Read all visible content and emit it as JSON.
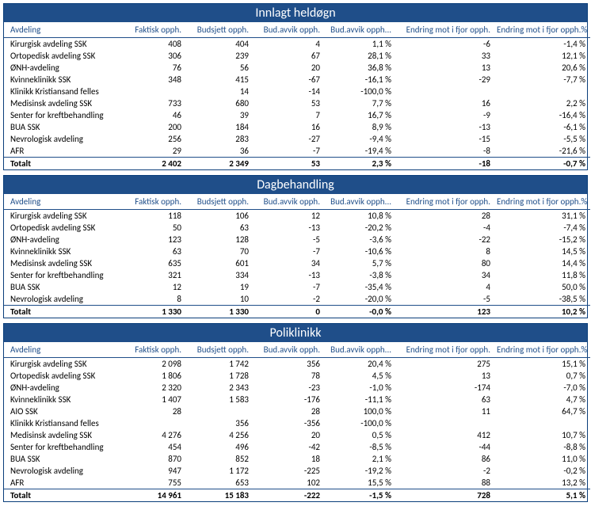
{
  "columns": [
    "Avdeling",
    "Faktisk opph.",
    "Budsjett opph.",
    "Bud.avvik opph.",
    "Bud.avvik opph...",
    "Endring mot i fjor opph.",
    "Endring mot i fjor opph.%"
  ],
  "sections": [
    {
      "title": "Innlagt heldøgn",
      "rows": [
        [
          "Kirurgisk avdeling SSK",
          "408",
          "404",
          "4",
          "1,1 %",
          "-6",
          "-1,4 %"
        ],
        [
          "Ortopedisk avdeling SSK",
          "306",
          "239",
          "67",
          "28,1 %",
          "33",
          "12,1 %"
        ],
        [
          "ØNH-avdeling",
          "76",
          "56",
          "20",
          "36,8 %",
          "13",
          "20,6 %"
        ],
        [
          "Kvinneklinikk SSK",
          "348",
          "415",
          "-67",
          "-16,1 %",
          "-29",
          "-7,7 %"
        ],
        [
          "Klinikk Kristiansand felles",
          "",
          "14",
          "-14",
          "-100,0 %",
          "",
          ""
        ],
        [
          "Medisinsk avdeling SSK",
          "733",
          "680",
          "53",
          "7,7 %",
          "16",
          "2,2 %"
        ],
        [
          "Senter for kreftbehandling",
          "46",
          "39",
          "7",
          "16,7 %",
          "-9",
          "-16,4 %"
        ],
        [
          "BUA SSK",
          "200",
          "184",
          "16",
          "8,9 %",
          "-13",
          "-6,1 %"
        ],
        [
          "Nevrologisk avdeling",
          "256",
          "283",
          "-27",
          "-9,4 %",
          "-15",
          "-5,5 %"
        ],
        [
          "AFR",
          "29",
          "36",
          "-7",
          "-19,4 %",
          "-8",
          "-21,6 %"
        ]
      ],
      "total": [
        "Totalt",
        "2 402",
        "2 349",
        "53",
        "2,3 %",
        "-18",
        "-0,7 %"
      ]
    },
    {
      "title": "Dagbehandling",
      "rows": [
        [
          "Kirurgisk avdeling SSK",
          "118",
          "106",
          "12",
          "10,8 %",
          "28",
          "31,1 %"
        ],
        [
          "Ortopedisk avdeling SSK",
          "50",
          "63",
          "-13",
          "-20,2 %",
          "-4",
          "-7,4 %"
        ],
        [
          "ØNH-avdeling",
          "123",
          "128",
          "-5",
          "-3,6 %",
          "-22",
          "-15,2 %"
        ],
        [
          "Kvinneklinikk SSK",
          "63",
          "70",
          "-7",
          "-10,6 %",
          "8",
          "14,5 %"
        ],
        [
          "Medisinsk avdeling SSK",
          "635",
          "601",
          "34",
          "5,7 %",
          "80",
          "14,4 %"
        ],
        [
          "Senter for kreftbehandling",
          "321",
          "334",
          "-13",
          "-3,8 %",
          "34",
          "11,8 %"
        ],
        [
          "BUA SSK",
          "12",
          "19",
          "-7",
          "-35,4 %",
          "4",
          "50,0 %"
        ],
        [
          "Nevrologisk avdeling",
          "8",
          "10",
          "-2",
          "-20,0 %",
          "-5",
          "-38,5 %"
        ]
      ],
      "total": [
        "Totalt",
        "1 330",
        "1 330",
        "0",
        "-0,0 %",
        "123",
        "10,2 %"
      ]
    },
    {
      "title": "Poliklinikk",
      "rows": [
        [
          "Kirurgisk avdeling SSK",
          "2 098",
          "1 742",
          "356",
          "20,4 %",
          "275",
          "15,1 %"
        ],
        [
          "Ortopedisk avdeling SSK",
          "1 806",
          "1 728",
          "78",
          "4,5 %",
          "13",
          "0,7 %"
        ],
        [
          "ØNH-avdeling",
          "2 320",
          "2 343",
          "-23",
          "-1,0 %",
          "-174",
          "-7,0 %"
        ],
        [
          "Kvinneklinikk SSK",
          "1 407",
          "1 583",
          "-176",
          "-11,1 %",
          "63",
          "4,7 %"
        ],
        [
          "AIO SSK",
          "28",
          "",
          "28",
          "100,0 %",
          "11",
          "64,7 %"
        ],
        [
          "Klinikk Kristiansand felles",
          "",
          "356",
          "-356",
          "-100,0 %",
          "",
          ""
        ],
        [
          "Medisinsk avdeling SSK",
          "4 276",
          "4 256",
          "20",
          "0,5 %",
          "412",
          "10,7 %"
        ],
        [
          "Senter for kreftbehandling",
          "454",
          "496",
          "-42",
          "-8,5 %",
          "-44",
          "-8,8 %"
        ],
        [
          "BUA SSK",
          "870",
          "852",
          "18",
          "2,1 %",
          "86",
          "11,0 %"
        ],
        [
          "Nevrologisk avdeling",
          "947",
          "1 172",
          "-225",
          "-19,2 %",
          "-2",
          "-0,2 %"
        ],
        [
          "AFR",
          "755",
          "653",
          "102",
          "15,5 %",
          "88",
          "13,2 %"
        ]
      ],
      "total": [
        "Totalt",
        "14 961",
        "15 183",
        "-222",
        "-1,5 %",
        "728",
        "5,1 %"
      ]
    }
  ]
}
